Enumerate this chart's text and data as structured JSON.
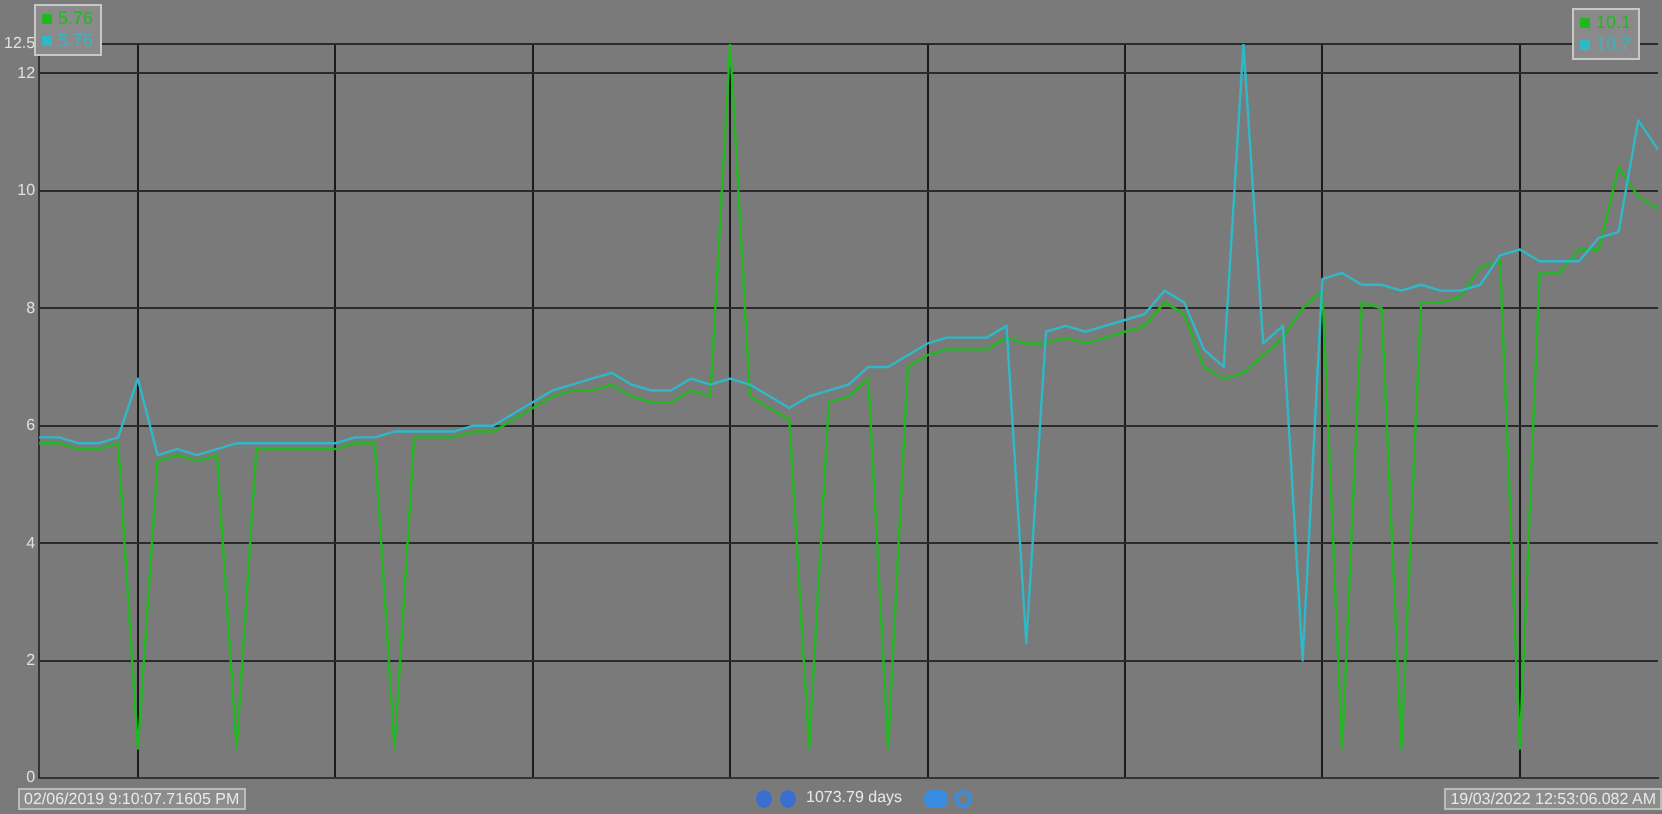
{
  "chart_data": {
    "type": "line",
    "categories": [
      null,
      null,
      null,
      null,
      null,
      null,
      null,
      null,
      null,
      null,
      null,
      null,
      null,
      null,
      null,
      null,
      null,
      null,
      null,
      null,
      null,
      null,
      null,
      null,
      null,
      null,
      null,
      null,
      null,
      null,
      null,
      null,
      null,
      null,
      null,
      null,
      null,
      null,
      null,
      null,
      null,
      null,
      null,
      null,
      null,
      null,
      null,
      null,
      null,
      null,
      null,
      null,
      null,
      null,
      null,
      null,
      null,
      null,
      null,
      null,
      null,
      null,
      null,
      null,
      null,
      null,
      null,
      null,
      null,
      null,
      null,
      null,
      null,
      null,
      null,
      null,
      null,
      null,
      null,
      null,
      null,
      null,
      null
    ],
    "series": [
      {
        "color": "#2fb8c8",
        "values": [
          5.8,
          5.8,
          5.7,
          5.7,
          5.8,
          6.8,
          5.5,
          5.6,
          5.5,
          5.6,
          5.7,
          5.7,
          5.7,
          5.7,
          5.7,
          5.7,
          5.8,
          5.8,
          5.9,
          5.9,
          5.9,
          5.9,
          6.0,
          6.0,
          6.2,
          6.4,
          6.6,
          6.7,
          6.8,
          6.9,
          6.7,
          6.6,
          6.6,
          6.8,
          6.7,
          6.8,
          6.7,
          6.5,
          6.3,
          6.5,
          6.6,
          6.7,
          7.0,
          7.0,
          7.2,
          7.4,
          7.5,
          7.5,
          7.5,
          7.7,
          2.3,
          7.6,
          7.7,
          7.6,
          7.7,
          7.8,
          7.9,
          8.3,
          8.1,
          7.3,
          7.0,
          12.5,
          7.4,
          7.7,
          2.0,
          8.5,
          8.6,
          8.4,
          8.4,
          8.3,
          8.4,
          8.3,
          8.3,
          8.4,
          8.9,
          9.0,
          8.8,
          8.8,
          8.8,
          9.2,
          9.3,
          11.2,
          10.7
        ]
      },
      {
        "color": "#1fb81f",
        "values": [
          5.7,
          5.7,
          5.6,
          5.6,
          5.7,
          0.5,
          5.4,
          5.5,
          5.4,
          5.5,
          0.5,
          5.6,
          5.6,
          5.6,
          5.6,
          5.6,
          5.7,
          5.7,
          0.5,
          5.8,
          5.8,
          5.8,
          5.9,
          5.9,
          6.1,
          6.3,
          6.5,
          6.6,
          6.6,
          6.7,
          6.5,
          6.4,
          6.4,
          6.6,
          6.5,
          12.5,
          6.5,
          6.3,
          6.1,
          0.5,
          6.4,
          6.5,
          6.8,
          0.5,
          7.0,
          7.2,
          7.3,
          7.3,
          7.3,
          7.5,
          7.4,
          7.4,
          7.5,
          7.4,
          7.5,
          7.6,
          7.7,
          8.1,
          7.9,
          7.0,
          6.8,
          6.9,
          7.2,
          7.5,
          8.0,
          8.3,
          0.5,
          8.1,
          8.0,
          0.5,
          8.1,
          8.1,
          8.2,
          8.7,
          8.8,
          0.5,
          8.6,
          8.6,
          9.0,
          9.0,
          10.4,
          9.9,
          9.7
        ]
      }
    ],
    "ylim": [
      0,
      12.5
    ],
    "yticks": [
      0,
      2,
      4,
      6,
      8,
      10,
      12,
      12.5
    ],
    "grid": true,
    "annotations": [
      "5.76",
      "5.76",
      "10.1",
      "10.7",
      "02/06/2019 9:10:07.71605 PM",
      "1073.79 days",
      "19/03/2022 12:53:06.082 AM"
    ]
  }
}
